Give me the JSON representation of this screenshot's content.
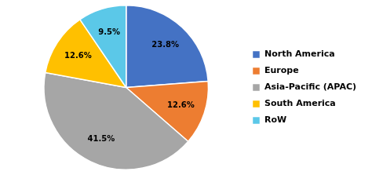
{
  "chart_data": {
    "type": "pie",
    "categories": [
      "North America",
      "Europe",
      "Asia-Pacific (APAC)",
      "South America",
      "RoW"
    ],
    "values": [
      23.8,
      12.6,
      41.5,
      12.6,
      9.5
    ],
    "value_labels": [
      "23.8%",
      "12.6%",
      "41.5%",
      "12.6%",
      "9.5%"
    ],
    "colors": [
      "#4472c4",
      "#ed7d31",
      "#a6a6a6",
      "#ffc000",
      "#5bc8e8"
    ],
    "data_labels": true,
    "legend": "right"
  }
}
